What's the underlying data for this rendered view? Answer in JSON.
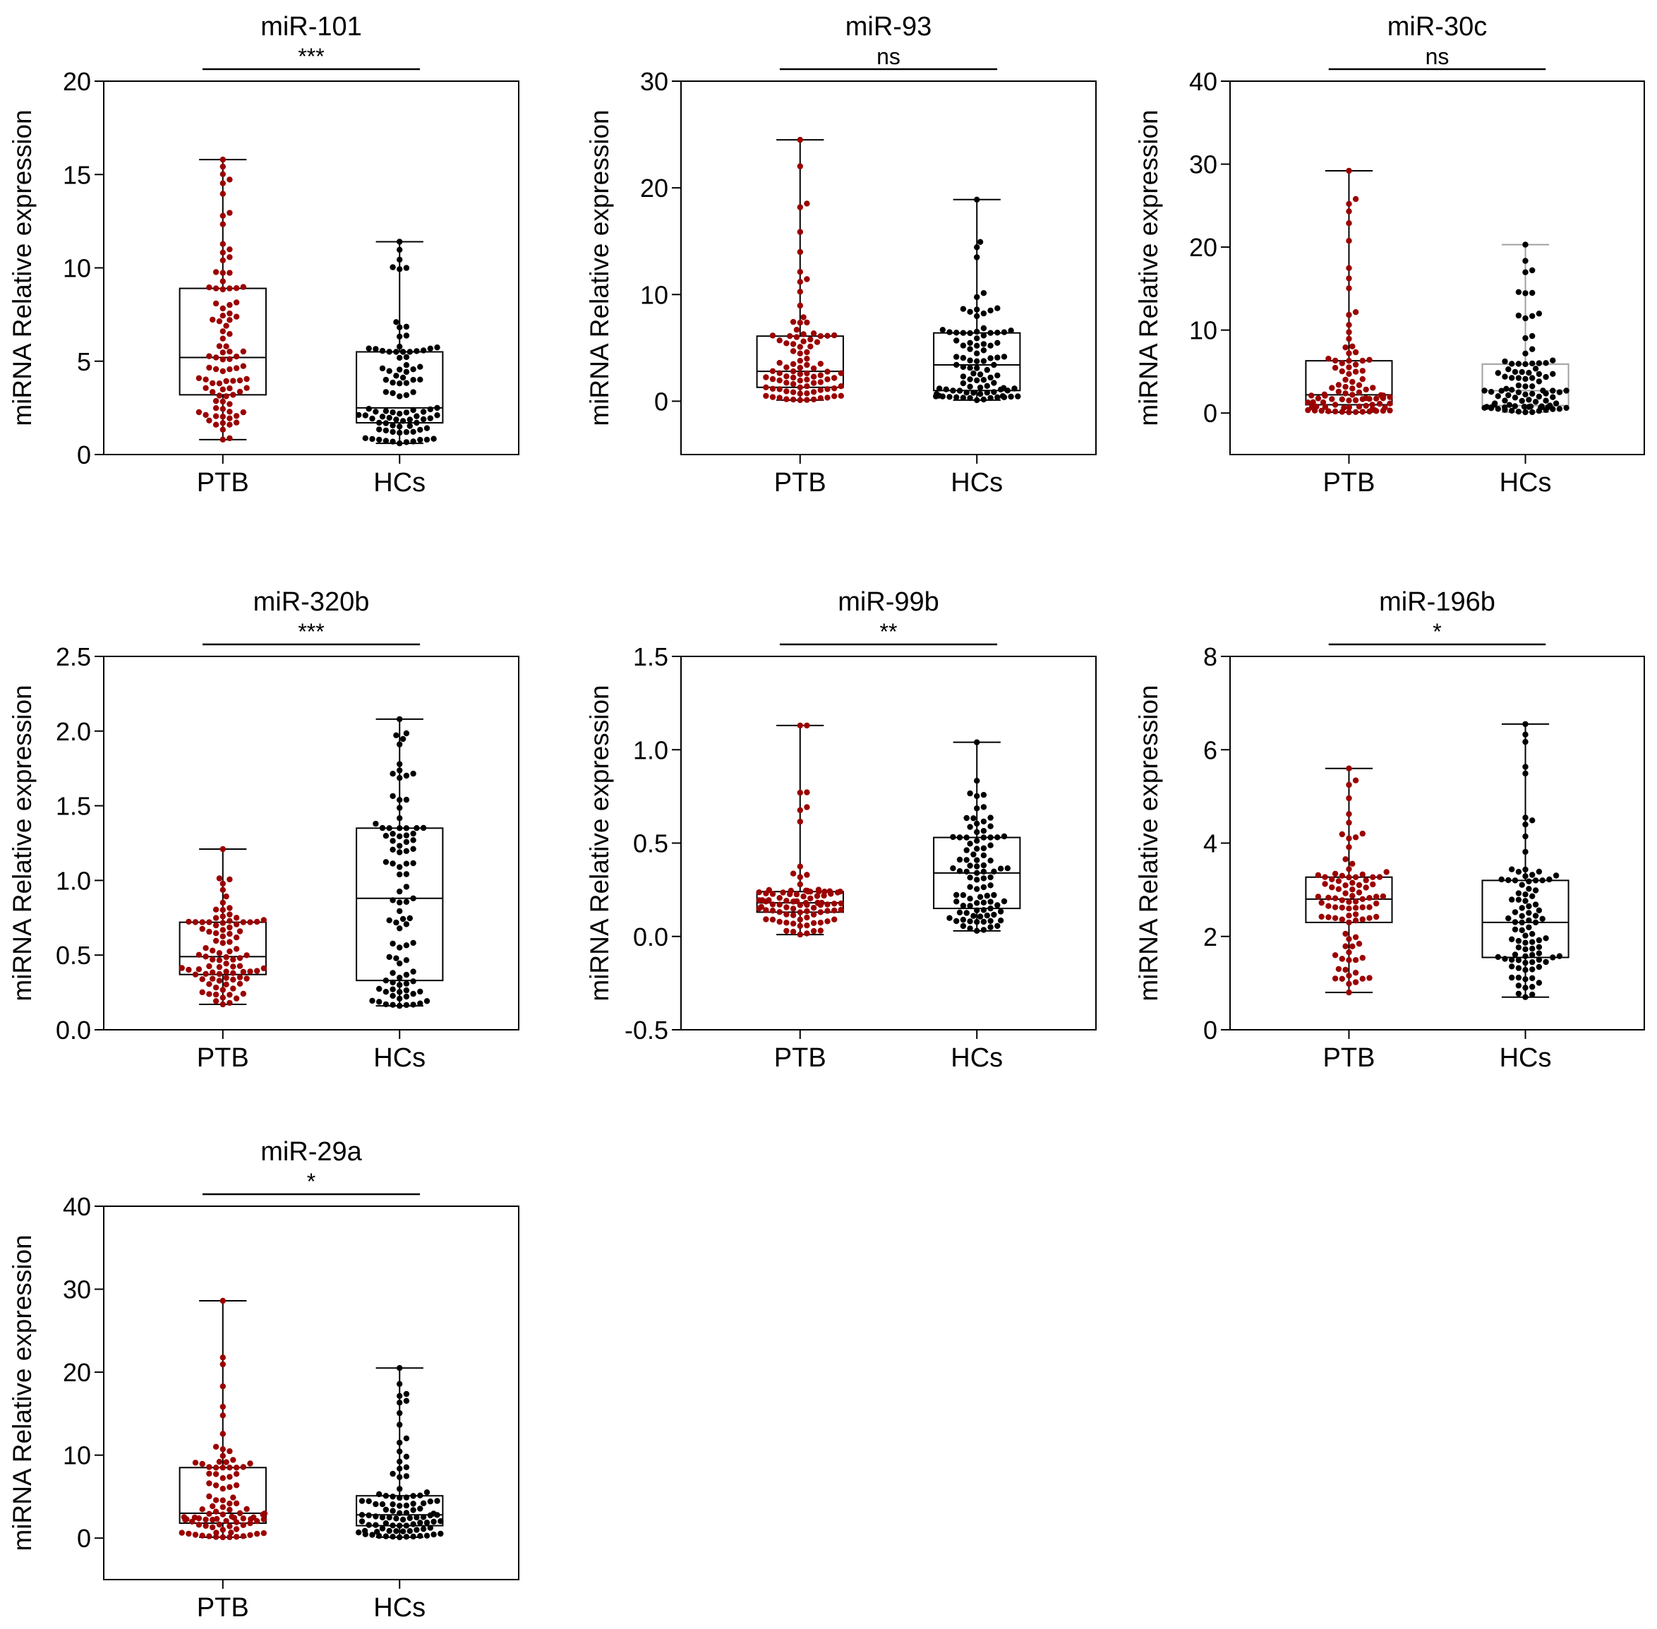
{
  "colors": {
    "ptb": "#9b0000",
    "hcs": "#000000",
    "gray_box": "#a0a0a0"
  },
  "chart_data": [
    {
      "type": "box-swarm",
      "title": "miR-101",
      "significance": "***",
      "ylabel": "miRNA Relative expression",
      "ylim": [
        0,
        20
      ],
      "yticks": [
        0,
        5,
        10,
        15,
        20
      ],
      "ytick_labels": [
        "0",
        "5",
        "10",
        "15",
        "20"
      ],
      "categories": [
        "PTB",
        "HCs"
      ],
      "boxes": [
        {
          "name": "PTB",
          "min": 0.8,
          "q1": 3.2,
          "median": 5.2,
          "q3": 8.9,
          "max": 15.8
        },
        {
          "name": "HCs",
          "min": 0.6,
          "q1": 1.7,
          "median": 2.5,
          "q3": 5.5,
          "max": 11.4
        }
      ]
    },
    {
      "type": "box-swarm",
      "title": "miR-93",
      "significance": "ns",
      "ylabel": "miRNA Relative expression",
      "ylim": [
        -5,
        30
      ],
      "yticks": [
        0,
        10,
        20,
        30
      ],
      "ytick_labels": [
        "0",
        "10",
        "20",
        "30"
      ],
      "categories": [
        "PTB",
        "HCs"
      ],
      "boxes": [
        {
          "name": "PTB",
          "min": 0.1,
          "q1": 1.3,
          "median": 2.8,
          "q3": 6.1,
          "max": 24.5
        },
        {
          "name": "HCs",
          "min": 0.1,
          "q1": 1.0,
          "median": 3.4,
          "q3": 6.4,
          "max": 18.9
        }
      ]
    },
    {
      "type": "box-swarm",
      "title": "miR-30c",
      "significance": "ns",
      "ylabel": "miRNA Relative expression",
      "ylim": [
        -5,
        40
      ],
      "yticks": [
        0,
        10,
        20,
        30,
        40
      ],
      "ytick_labels": [
        "0",
        "10",
        "20",
        "30",
        "40"
      ],
      "categories": [
        "PTB",
        "HCs"
      ],
      "boxes": [
        {
          "name": "PTB",
          "min": 0.1,
          "q1": 1.0,
          "median": 2.2,
          "q3": 6.3,
          "max": 29.2
        },
        {
          "name": "HCs",
          "min": 0.1,
          "q1": 0.9,
          "median": 2.7,
          "q3": 5.9,
          "max": 20.3,
          "gray": true
        }
      ]
    },
    {
      "type": "box-swarm",
      "title": "miR-320b",
      "significance": "***",
      "ylabel": "miRNA Relative expression",
      "ylim": [
        0,
        2.5
      ],
      "yticks": [
        0,
        0.5,
        1.0,
        1.5,
        2.0,
        2.5
      ],
      "ytick_labels": [
        "0.0",
        "0.5",
        "1.0",
        "1.5",
        "2.0",
        "2.5"
      ],
      "categories": [
        "PTB",
        "HCs"
      ],
      "boxes": [
        {
          "name": "PTB",
          "min": 0.17,
          "q1": 0.37,
          "median": 0.49,
          "q3": 0.72,
          "max": 1.21
        },
        {
          "name": "HCs",
          "min": 0.16,
          "q1": 0.33,
          "median": 0.88,
          "q3": 1.35,
          "max": 2.08
        }
      ]
    },
    {
      "type": "box-swarm",
      "title": "miR-99b",
      "significance": "**",
      "ylabel": "miRNA Relative expression",
      "ylim": [
        -0.5,
        1.5
      ],
      "yticks": [
        -0.5,
        0,
        0.5,
        1.0,
        1.5
      ],
      "ytick_labels": [
        "-0.5",
        "0.0",
        "0.5",
        "1.0",
        "1.5"
      ],
      "categories": [
        "PTB",
        "HCs"
      ],
      "boxes": [
        {
          "name": "PTB",
          "min": 0.01,
          "q1": 0.13,
          "median": 0.18,
          "q3": 0.24,
          "max": 1.13
        },
        {
          "name": "HCs",
          "min": 0.03,
          "q1": 0.15,
          "median": 0.34,
          "q3": 0.53,
          "max": 1.04
        }
      ]
    },
    {
      "type": "box-swarm",
      "title": "miR-196b",
      "significance": "*",
      "ylabel": "miRNA Relative expression",
      "ylim": [
        0,
        8
      ],
      "yticks": [
        0,
        2,
        4,
        6,
        8
      ],
      "ytick_labels": [
        "0",
        "2",
        "4",
        "6",
        "8"
      ],
      "categories": [
        "PTB",
        "HCs"
      ],
      "boxes": [
        {
          "name": "PTB",
          "min": 0.8,
          "q1": 2.3,
          "median": 2.8,
          "q3": 3.27,
          "max": 5.6
        },
        {
          "name": "HCs",
          "min": 0.7,
          "q1": 1.55,
          "median": 2.3,
          "q3": 3.2,
          "max": 6.55
        }
      ]
    },
    {
      "type": "box-swarm",
      "title": "miR-29a",
      "significance": "*",
      "ylabel": "miRNA Relative expression",
      "ylim": [
        -5,
        40
      ],
      "yticks": [
        0,
        10,
        20,
        30,
        40
      ],
      "ytick_labels": [
        "0",
        "10",
        "20",
        "30",
        "40"
      ],
      "categories": [
        "PTB",
        "HCs"
      ],
      "boxes": [
        {
          "name": "PTB",
          "min": 0.1,
          "q1": 1.8,
          "median": 3.0,
          "q3": 8.5,
          "max": 28.6
        },
        {
          "name": "HCs",
          "min": 0.1,
          "q1": 1.5,
          "median": 2.8,
          "q3": 5.1,
          "max": 20.5
        }
      ]
    }
  ]
}
